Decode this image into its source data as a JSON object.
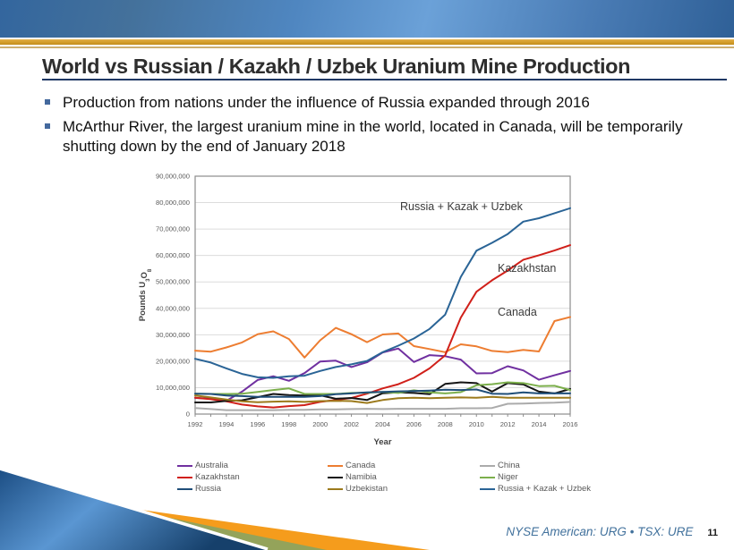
{
  "slide": {
    "title": "World vs Russian / Kazakh / Uzbek Uranium Mine Production",
    "page_number": "11",
    "footer_ticker": "NYSE American: URG • TSX: URE"
  },
  "bullets": [
    {
      "text": "Production from nations under the influence of Russia expanded through 2016"
    },
    {
      "text": "McArthur River, the largest uranium mine in the world, located in Canada, will be temporarily shutting down by the end of January 2018"
    }
  ],
  "colors": {
    "banner_blue_gradient": [
      "#33669e",
      "#6ba1d8",
      "#2f6097"
    ],
    "gold_stripe": "#d39d2a",
    "title_rule_navy": "#1f3864",
    "bullet_marker_blue": "#44699d",
    "footer_text_blue": "#41719c",
    "decoration_orange": "#f59c1c",
    "decoration_olive": "#94a35a",
    "decoration_blue": [
      "#1d4f85",
      "#5a96d2"
    ]
  },
  "chart_data": {
    "type": "line",
    "title": "",
    "xlabel": "Year",
    "ylabel": "Pounds U3O8",
    "ylabel_parts": [
      {
        "t": "Pounds U"
      },
      {
        "t": "3",
        "sub": true
      },
      {
        "t": "O"
      },
      {
        "t": "8",
        "sub": true
      }
    ],
    "values_unit": "million pounds U3O8",
    "x": [
      1992,
      1993,
      1994,
      1995,
      1996,
      1997,
      1998,
      1999,
      2000,
      2001,
      2002,
      2003,
      2004,
      2005,
      2006,
      2007,
      2008,
      2009,
      2010,
      2011,
      2012,
      2013,
      2014,
      2015,
      2016
    ],
    "x_tick_labels": [
      "1992",
      "1994",
      "1996",
      "1998",
      "2000",
      "2002",
      "2004",
      "2006",
      "2008",
      "2010",
      "2012",
      "2014",
      "2016"
    ],
    "ylim_millions": [
      0,
      90
    ],
    "y_tick_labels": [
      "0",
      "10,000,000",
      "20,000,000",
      "30,000,000",
      "40,000,000",
      "50,000,000",
      "60,000,000",
      "70,000,000",
      "80,000,000",
      "90,000,000"
    ],
    "grid": true,
    "legend_position": "bottom",
    "legend_order": [
      "Australia",
      "Canada",
      "China",
      "Kazakhstan",
      "Namibia",
      "Niger",
      "Russia",
      "Uzbekistan",
      "Russia + Kazak + Uzbek"
    ],
    "series": [
      {
        "name": "Australia",
        "color": "#7030a0",
        "values": [
          6.1,
          5.9,
          5.0,
          8.5,
          12.9,
          14.3,
          12.6,
          15.5,
          19.9,
          20.2,
          17.8,
          19.6,
          23.3,
          24.8,
          19.7,
          22.3,
          21.9,
          20.6,
          15.4,
          15.5,
          18.1,
          16.5,
          13.0,
          14.7,
          16.3
        ]
      },
      {
        "name": "Canada",
        "color": "#ed7d31",
        "values": [
          24.0,
          23.6,
          25.2,
          27.1,
          30.2,
          31.3,
          28.4,
          21.4,
          27.9,
          32.6,
          30.2,
          27.2,
          30.1,
          30.5,
          25.7,
          24.6,
          23.4,
          26.4,
          25.6,
          23.9,
          23.4,
          24.3,
          23.7,
          35.2,
          36.7
        ]
      },
      {
        "name": "China",
        "color": "#ababab",
        "values": [
          2.3,
          1.9,
          1.5,
          1.5,
          1.5,
          1.5,
          1.6,
          1.6,
          1.8,
          1.8,
          1.9,
          2.0,
          1.9,
          2.0,
          2.0,
          2.0,
          2.0,
          2.2,
          2.2,
          2.3,
          3.9,
          4.0,
          4.2,
          4.3,
          4.6
        ]
      },
      {
        "name": "Kazakhstan",
        "color": "#d0201a",
        "values": [
          6.2,
          5.6,
          4.8,
          3.6,
          2.9,
          2.5,
          3.0,
          3.4,
          4.6,
          5.3,
          6.1,
          7.7,
          9.7,
          11.3,
          13.7,
          17.3,
          22.2,
          36.5,
          46.3,
          50.6,
          54.3,
          58.4,
          60.1,
          61.9,
          63.9
        ]
      },
      {
        "name": "Namibia",
        "color": "#141414",
        "values": [
          4.4,
          4.4,
          5.0,
          5.2,
          6.4,
          7.6,
          7.2,
          7.0,
          7.1,
          5.8,
          6.1,
          5.3,
          7.9,
          8.2,
          8.0,
          7.5,
          11.4,
          12.0,
          11.7,
          8.5,
          11.7,
          11.2,
          8.5,
          7.8,
          9.5
        ]
      },
      {
        "name": "Niger",
        "color": "#7caf4c",
        "values": [
          7.7,
          7.6,
          7.6,
          7.7,
          8.4,
          9.1,
          9.7,
          7.6,
          7.6,
          7.6,
          8.0,
          8.1,
          8.4,
          8.0,
          9.0,
          8.2,
          7.8,
          8.3,
          10.9,
          11.3,
          12.0,
          11.7,
          10.6,
          10.7,
          9.1
        ]
      },
      {
        "name": "Russia",
        "color": "#1f4e79",
        "values": [
          7.7,
          7.6,
          7.0,
          6.8,
          6.5,
          6.5,
          6.5,
          6.5,
          6.8,
          7.5,
          7.8,
          8.2,
          8.4,
          8.6,
          8.7,
          8.9,
          9.2,
          9.1,
          9.3,
          7.7,
          7.6,
          8.2,
          7.8,
          7.9,
          7.8
        ]
      },
      {
        "name": "Uzbekistan",
        "color": "#9c7a1c",
        "values": [
          7.0,
          6.3,
          5.5,
          4.8,
          4.5,
          4.7,
          4.8,
          4.6,
          4.9,
          5.0,
          4.9,
          4.2,
          5.3,
          6.0,
          6.2,
          6.0,
          6.2,
          6.3,
          6.2,
          6.5,
          6.2,
          6.2,
          6.2,
          6.2,
          6.2
        ]
      },
      {
        "name": "Russia + Kazak + Uzbek",
        "color": "#2a6496",
        "values": [
          20.9,
          19.5,
          17.3,
          15.2,
          13.9,
          13.7,
          14.3,
          14.5,
          16.3,
          17.8,
          18.8,
          20.1,
          23.4,
          25.9,
          28.6,
          32.2,
          37.6,
          51.9,
          61.8,
          64.8,
          68.1,
          72.8,
          74.1,
          76.0,
          77.9
        ]
      }
    ],
    "annotations": [
      {
        "text": "Russia + Kazak + Uzbek",
        "x": 299,
        "y": 43
      },
      {
        "text": "Kazakhstan",
        "x": 408,
        "y": 112
      },
      {
        "text": "Canada",
        "x": 408,
        "y": 161
      }
    ]
  }
}
